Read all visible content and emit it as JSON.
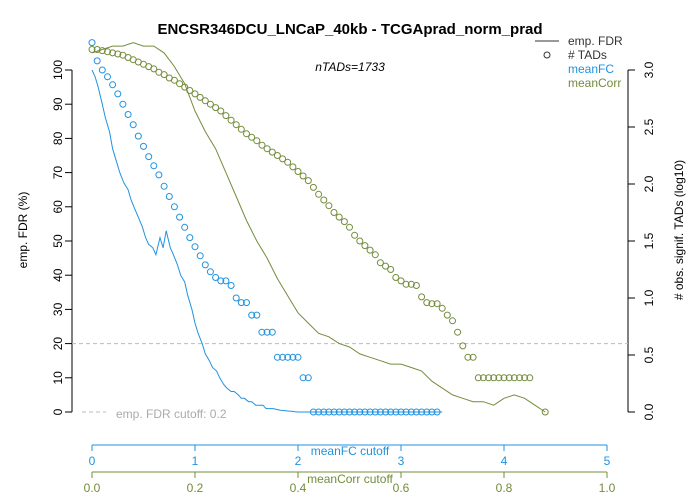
{
  "chart_data": {
    "type": "line",
    "title": "ENCSR346DCU_LNCaP_40kb - TCGAprad_norm_prad",
    "subtitle": "nTADs=1733",
    "ylabel_left": "emp. FDR (%)",
    "ylabel_right": "# obs. signif. TADs (log10)",
    "ylim_left": [
      0,
      100
    ],
    "ylim_right": [
      0,
      3
    ],
    "left_ticks": [
      0,
      10,
      20,
      30,
      40,
      50,
      60,
      70,
      80,
      90,
      100
    ],
    "right_ticks": [
      0,
      0.5,
      1,
      1.5,
      2,
      2.5,
      3
    ],
    "cutoff": {
      "value": 20,
      "label": "emp. FDR cutoff: 0.2"
    },
    "meanFC_axis": {
      "label": "meanFC cutoff",
      "range": [
        0,
        5
      ],
      "ticks": [
        0,
        1,
        2,
        3,
        4,
        5
      ],
      "color": "#1F93E0"
    },
    "meanCorr_axis": {
      "label": "meanCorr cutoff",
      "range": [
        0,
        1
      ],
      "ticks": [
        0,
        0.2,
        0.4,
        0.6,
        0.8,
        1.0
      ],
      "color": "#738C3C"
    },
    "legend": {
      "items": [
        {
          "label": "emp. FDR",
          "symbol": "line",
          "color": "#333333"
        },
        {
          "label": "# TADs",
          "symbol": "circle",
          "color": "#333333"
        },
        {
          "label": "meanFC",
          "symbol": "none",
          "color": "#1F93E0"
        },
        {
          "label": "meanCorr",
          "symbol": "none",
          "color": "#738C3C"
        }
      ],
      "position": "top-right"
    },
    "series": [
      {
        "name": "meanFC",
        "color": "#1F93E0",
        "fdr_x": [
          0,
          0.03,
          0.06,
          0.1,
          0.13,
          0.17,
          0.2,
          0.24,
          0.27,
          0.31,
          0.35,
          0.38,
          0.42,
          0.45,
          0.49,
          0.52,
          0.55,
          0.59,
          0.62,
          0.66,
          0.69,
          0.72,
          0.76,
          0.79,
          0.83,
          0.86,
          0.9,
          0.93,
          0.97,
          1.0,
          1.03,
          1.07,
          1.1,
          1.14,
          1.17,
          1.21,
          1.24,
          1.28,
          1.31,
          1.35,
          1.38,
          1.42,
          1.45,
          1.48,
          1.52,
          1.55,
          1.59,
          1.62,
          1.66,
          1.69,
          1.73,
          1.76,
          1.8,
          1.83,
          1.87,
          1.9,
          1.94,
          1.97,
          2.0,
          2.1,
          2.2,
          2.3,
          2.4,
          2.5,
          2.6,
          2.7,
          2.8,
          2.9,
          3.0,
          3.1,
          3.2,
          3.3,
          3.4
        ],
        "fdr_y": [
          100,
          98,
          95,
          90,
          86,
          82,
          77,
          73,
          70,
          67,
          65,
          62,
          59,
          57,
          54,
          51,
          49,
          48,
          46,
          51,
          48,
          53,
          48,
          46,
          43,
          40,
          38,
          34,
          30,
          26,
          23,
          20,
          17,
          15,
          13,
          12,
          10,
          8,
          7,
          6,
          6,
          5,
          4,
          4,
          3,
          3,
          2,
          2,
          2,
          1,
          1,
          1,
          0.7,
          0.5,
          0.4,
          0.3,
          0.2,
          0.1,
          0,
          0,
          0,
          0,
          0,
          0,
          0,
          0,
          0,
          0,
          0,
          0,
          0,
          0,
          0
        ],
        "tads_x": [
          0,
          0.05,
          0.1,
          0.15,
          0.2,
          0.25,
          0.3,
          0.35,
          0.4,
          0.45,
          0.5,
          0.55,
          0.6,
          0.65,
          0.7,
          0.75,
          0.8,
          0.85,
          0.9,
          0.95,
          1.0,
          1.05,
          1.1,
          1.15,
          1.2,
          1.25,
          1.3,
          1.35,
          1.4,
          1.45,
          1.5,
          1.55,
          1.6,
          1.65,
          1.7,
          1.75,
          1.8,
          1.85,
          1.9,
          1.95,
          2.0,
          2.05,
          2.1,
          2.15,
          2.2,
          2.25,
          2.3,
          2.35,
          2.4,
          2.45,
          2.5,
          2.55,
          2.6,
          2.65,
          2.7,
          2.75,
          2.8,
          2.85,
          2.9,
          2.95,
          3.0,
          3.05,
          3.1,
          3.15,
          3.2,
          3.25,
          3.3,
          3.35
        ],
        "tads_y": [
          3.24,
          3.08,
          3.0,
          2.94,
          2.87,
          2.79,
          2.7,
          2.61,
          2.52,
          2.42,
          2.33,
          2.24,
          2.16,
          2.08,
          1.98,
          1.89,
          1.8,
          1.71,
          1.62,
          1.53,
          1.45,
          1.37,
          1.29,
          1.23,
          1.18,
          1.15,
          1.15,
          1.11,
          1.0,
          0.96,
          0.96,
          0.85,
          0.85,
          0.7,
          0.7,
          0.7,
          0.48,
          0.48,
          0.48,
          0.48,
          0.48,
          0.3,
          0.3,
          0,
          0,
          0,
          0,
          0,
          0,
          0,
          0,
          0,
          0,
          0,
          0,
          0,
          0,
          0,
          0,
          0,
          0,
          0,
          0,
          0,
          0,
          0,
          0,
          0
        ]
      },
      {
        "name": "meanCorr",
        "color": "#738C3C",
        "fdr_x": [
          0,
          0.02,
          0.04,
          0.06,
          0.08,
          0.1,
          0.12,
          0.14,
          0.16,
          0.18,
          0.2,
          0.22,
          0.24,
          0.26,
          0.28,
          0.3,
          0.32,
          0.34,
          0.36,
          0.38,
          0.4,
          0.42,
          0.44,
          0.46,
          0.48,
          0.5,
          0.52,
          0.54,
          0.56,
          0.58,
          0.6,
          0.62,
          0.64,
          0.66,
          0.68,
          0.7,
          0.72,
          0.74,
          0.76,
          0.78,
          0.8,
          0.82,
          0.84,
          0.86,
          0.88
        ],
        "fdr_y": [
          105,
          106,
          107,
          107,
          108,
          107,
          107,
          105,
          101,
          96,
          88,
          82,
          77,
          70,
          63,
          56,
          50,
          45,
          39,
          34,
          29,
          26,
          23,
          22,
          20,
          19,
          17,
          16,
          15,
          14,
          14,
          13,
          12,
          9,
          7,
          5,
          4,
          3,
          3,
          2,
          4,
          5,
          4,
          2,
          0
        ],
        "tads_x": [
          0,
          0.01,
          0.02,
          0.03,
          0.04,
          0.05,
          0.06,
          0.07,
          0.08,
          0.09,
          0.1,
          0.11,
          0.12,
          0.13,
          0.14,
          0.15,
          0.16,
          0.17,
          0.18,
          0.19,
          0.2,
          0.21,
          0.22,
          0.23,
          0.24,
          0.25,
          0.26,
          0.27,
          0.28,
          0.29,
          0.3,
          0.31,
          0.32,
          0.33,
          0.34,
          0.35,
          0.36,
          0.37,
          0.38,
          0.39,
          0.4,
          0.41,
          0.42,
          0.43,
          0.44,
          0.45,
          0.46,
          0.47,
          0.48,
          0.49,
          0.5,
          0.51,
          0.52,
          0.53,
          0.54,
          0.55,
          0.56,
          0.57,
          0.58,
          0.59,
          0.6,
          0.61,
          0.62,
          0.63,
          0.64,
          0.65,
          0.66,
          0.67,
          0.68,
          0.69,
          0.7,
          0.71,
          0.72,
          0.73,
          0.74,
          0.75,
          0.76,
          0.77,
          0.78,
          0.79,
          0.8,
          0.81,
          0.82,
          0.83,
          0.84,
          0.85,
          0.88
        ],
        "tads_y": [
          3.18,
          3.18,
          3.17,
          3.16,
          3.15,
          3.14,
          3.13,
          3.11,
          3.09,
          3.07,
          3.05,
          3.03,
          3.01,
          2.98,
          2.96,
          2.93,
          2.91,
          2.88,
          2.85,
          2.82,
          2.79,
          2.76,
          2.73,
          2.7,
          2.67,
          2.64,
          2.6,
          2.56,
          2.52,
          2.48,
          2.44,
          2.41,
          2.38,
          2.34,
          2.31,
          2.28,
          2.25,
          2.22,
          2.19,
          2.15,
          2.11,
          2.07,
          2.03,
          1.97,
          1.91,
          1.86,
          1.81,
          1.75,
          1.71,
          1.67,
          1.62,
          1.55,
          1.5,
          1.46,
          1.42,
          1.38,
          1.31,
          1.28,
          1.25,
          1.18,
          1.15,
          1.12,
          1.12,
          1.11,
          1.01,
          0.96,
          0.95,
          0.95,
          0.91,
          0.85,
          0.8,
          0.7,
          0.58,
          0.48,
          0.48,
          0.3,
          0.3,
          0.3,
          0.3,
          0.3,
          0.3,
          0.3,
          0.3,
          0.3,
          0.3,
          0.3,
          0
        ]
      }
    ]
  }
}
